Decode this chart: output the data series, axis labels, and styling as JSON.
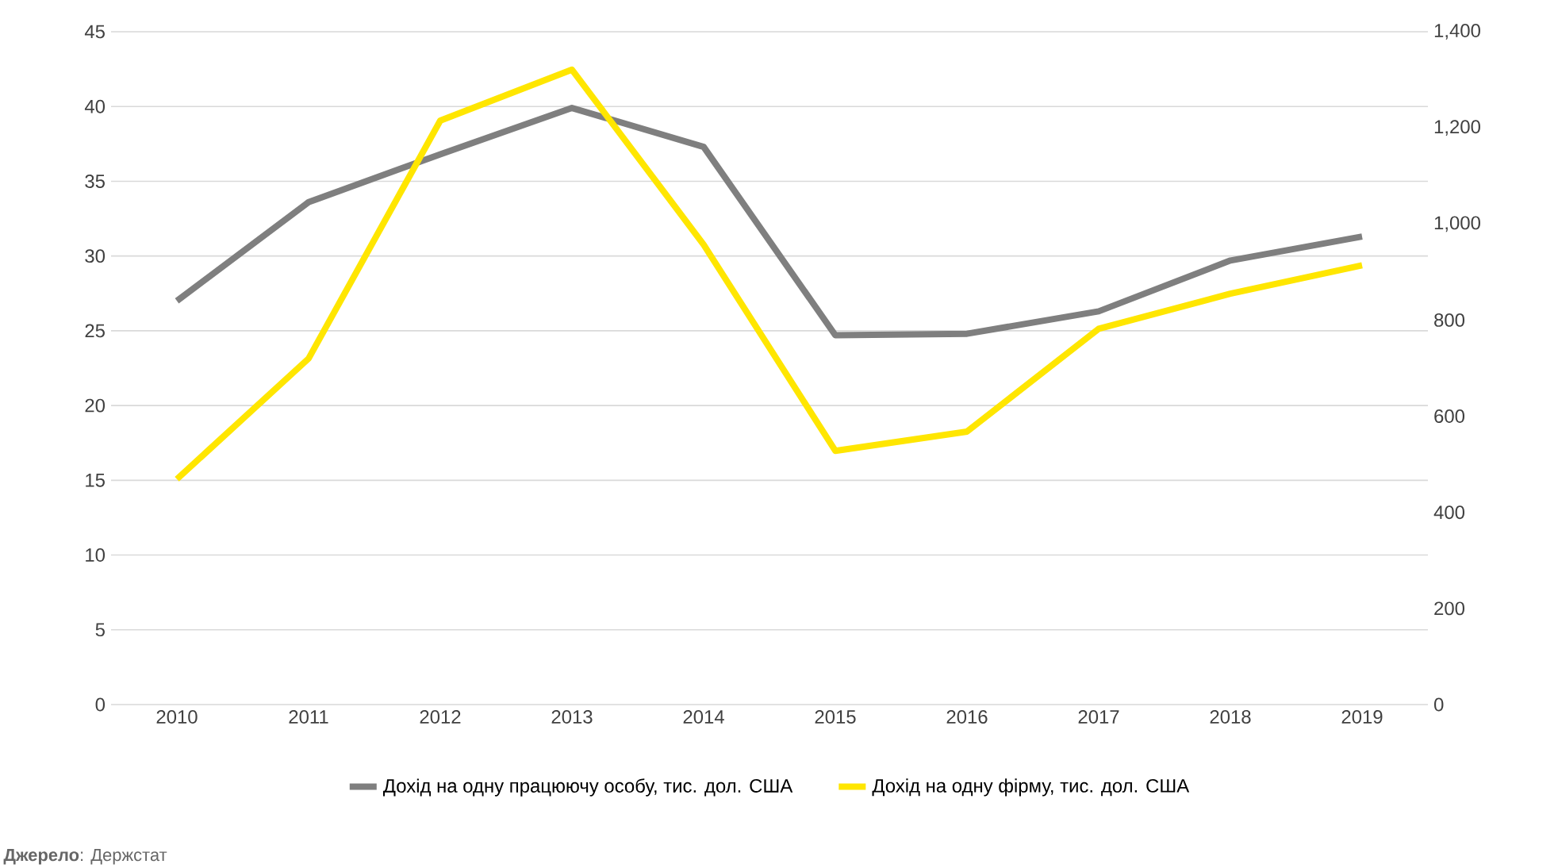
{
  "chart_data": {
    "type": "line",
    "categories": [
      "2010",
      "2011",
      "2012",
      "2013",
      "2014",
      "2015",
      "2016",
      "2017",
      "2018",
      "2019"
    ],
    "series": [
      {
        "name": "Дохід на одну працюючу особу, тис. дол. США",
        "color": "#7f7f7f",
        "values": [
          27.0,
          33.6,
          36.8,
          39.9,
          37.3,
          24.7,
          24.8,
          26.3,
          29.7,
          31.3
        ]
      },
      {
        "name": "Дохід на одну фірму, тис. дол. США",
        "color": "#ffe600",
        "axis": "y2",
        "values": [
          469,
          720,
          1215,
          1321,
          957,
          528,
          568,
          782,
          855,
          914
        ]
      }
    ],
    "ylim": [
      0,
      45
    ],
    "yticks": [
      0,
      5,
      10,
      15,
      20,
      25,
      30,
      35,
      40,
      45
    ],
    "y2lim": [
      0,
      1400
    ],
    "y2ticks": [
      0,
      {
        "value": 200,
        "label": "200"
      },
      {
        "value": 400,
        "label": "400"
      },
      {
        "value": 600,
        "label": "600"
      },
      {
        "value": 800,
        "label": "800"
      },
      {
        "value": 1000,
        "label": "1,000"
      },
      {
        "value": 1200,
        "label": "1,200"
      },
      {
        "value": 1400,
        "label": "1,400"
      }
    ],
    "grid": "y",
    "legend": "bottom",
    "marker": "none",
    "line_style": "solid",
    "annotations": [
      "**Джерело**: Держстат"
    ]
  }
}
